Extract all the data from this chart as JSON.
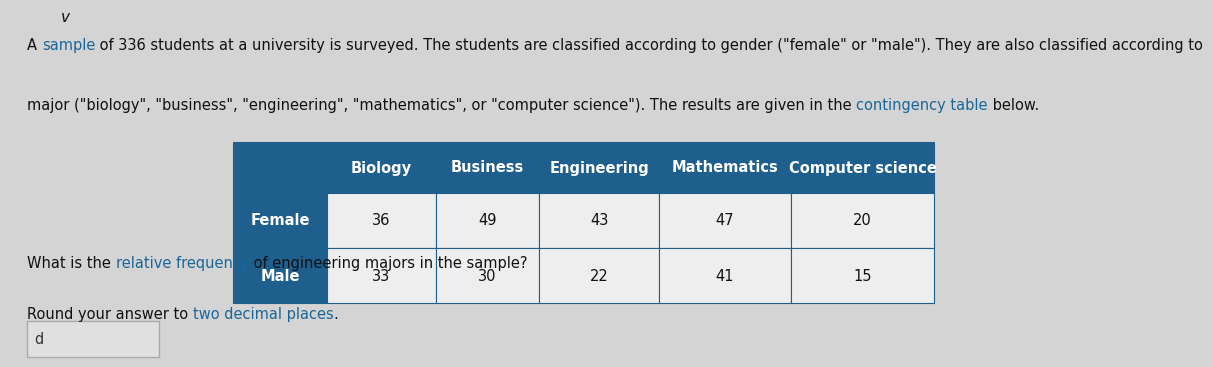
{
  "sample_link": "sample",
  "paragraph1b": " of 336 students at a university is surveyed. The students are classified according to gender (\"female\" or \"male\"). They are also classified according to",
  "paragraph2": "major (\"biology\", \"business\", \"engineering\", \"mathematics\", or \"computer science\"). The results are given in the ",
  "contingency_link": "contingency table",
  "paragraph2b": " below.",
  "question_line1_pre": "What is the ",
  "rel_freq_link": "relative frequency",
  "question_line1_post": " of engineering majors in the sample?",
  "question_line2_pre": "Round your answer to ",
  "two_decimal_link": "two decimal places",
  "question_line2_post": ".",
  "col_headers": [
    "Biology",
    "Business",
    "Engineering",
    "Mathematics",
    "Computer science"
  ],
  "row_headers": [
    "Female",
    "Male"
  ],
  "table_data": [
    [
      36,
      49,
      43,
      47,
      20
    ],
    [
      33,
      30,
      22,
      41,
      15
    ]
  ],
  "header_bg": "#1e5f8e",
  "header_text_color": "#ffffff",
  "row_header_bg": "#1e5f8e",
  "row_header_text_color": "#ffffff",
  "cell_bg": "#eeeeee",
  "cell_text_color": "#111111",
  "table_border_color": "#1e5f8e",
  "body_text_color": "#111111",
  "link_color": "#1a6699",
  "bg_color": "#d4d4d4",
  "font_size_body": 10.5,
  "font_size_table": 10.5,
  "answer_box_color": "#e0e0e0",
  "answer_text": "d",
  "chevron": "v"
}
